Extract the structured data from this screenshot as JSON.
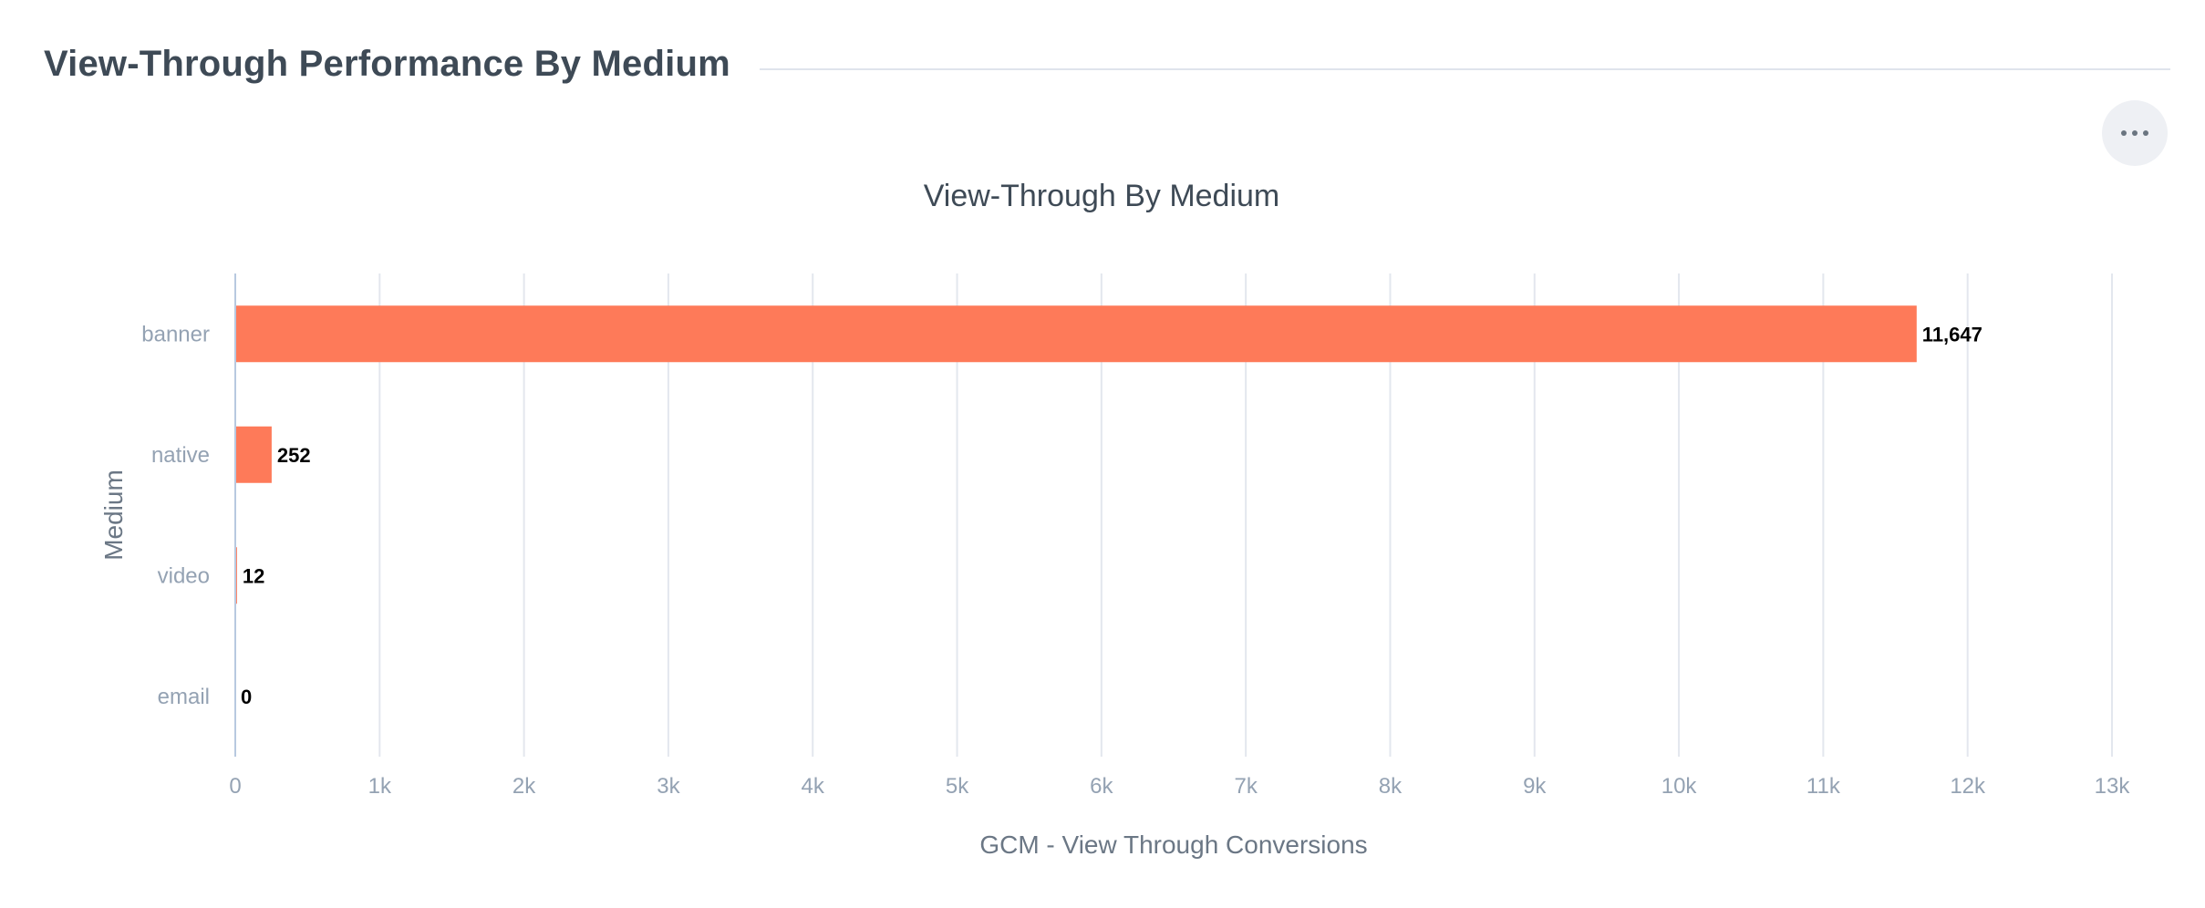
{
  "page": {
    "section_title": "View-Through Performance By Medium",
    "menu_icon": "ellipsis-icon"
  },
  "chart_data": {
    "type": "bar",
    "orientation": "horizontal",
    "title": "View-Through By Medium",
    "xlabel": "GCM - View Through Conversions",
    "ylabel": "Medium",
    "categories": [
      "banner",
      "native",
      "video",
      "email"
    ],
    "values": [
      11647,
      252,
      12,
      0
    ],
    "value_labels": [
      "11,647",
      "252",
      "12",
      "0"
    ],
    "xlim": [
      0,
      13000
    ],
    "xticks": [
      0,
      1000,
      2000,
      3000,
      4000,
      5000,
      6000,
      7000,
      8000,
      9000,
      10000,
      11000,
      12000,
      13000
    ],
    "xtick_labels": [
      "0",
      "1k",
      "2k",
      "3k",
      "4k",
      "5k",
      "6k",
      "7k",
      "8k",
      "9k",
      "10k",
      "11k",
      "12k",
      "13k"
    ],
    "grid": true,
    "colors": {
      "bar": "#fe7a59",
      "grid": "#e3e7ee",
      "axis": "#b8c9e0"
    }
  }
}
